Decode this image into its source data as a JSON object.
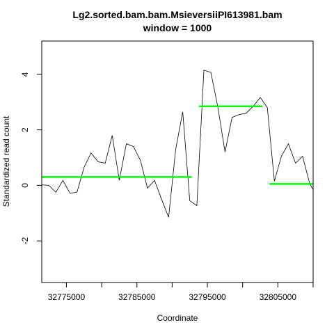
{
  "chart_data": {
    "type": "line",
    "title": "Lg2.sorted.bam.bam.MsieversiiPI613981.bam",
    "subtitle": "window = 1000",
    "xlabel": "Coordinate",
    "ylabel": "Standardized read count",
    "xlim": [
      32771500,
      32810000
    ],
    "ylim": [
      -3.5,
      5.2
    ],
    "x_ticks": [
      32775000,
      32785000,
      32795000,
      32805000
    ],
    "x_minor_ticks": [
      32775000,
      32780000,
      32785000,
      32790000,
      32795000,
      32800000,
      32805000,
      32810000
    ],
    "y_ticks": [
      -2,
      0,
      2,
      4
    ],
    "grid": false,
    "series": [
      {
        "color": "#000000",
        "points": [
          [
            32771500,
            0.02
          ],
          [
            32772500,
            0.0
          ],
          [
            32773500,
            -0.25
          ],
          [
            32774500,
            0.18
          ],
          [
            32775500,
            -0.28
          ],
          [
            32776500,
            -0.25
          ],
          [
            32777500,
            0.65
          ],
          [
            32778500,
            1.17
          ],
          [
            32779500,
            0.85
          ],
          [
            32780500,
            0.8
          ],
          [
            32781500,
            1.8
          ],
          [
            32782500,
            0.18
          ],
          [
            32783500,
            1.5
          ],
          [
            32784500,
            1.4
          ],
          [
            32785500,
            0.9
          ],
          [
            32786500,
            -0.1
          ],
          [
            32787500,
            0.18
          ],
          [
            32788500,
            -0.5
          ],
          [
            32789500,
            -1.15
          ],
          [
            32790500,
            1.3
          ],
          [
            32791500,
            2.65
          ],
          [
            32792500,
            -0.55
          ],
          [
            32793500,
            -0.73
          ],
          [
            32794500,
            4.15
          ],
          [
            32795500,
            4.07
          ],
          [
            32796500,
            2.8
          ],
          [
            32797500,
            1.2
          ],
          [
            32798500,
            2.45
          ],
          [
            32799500,
            2.55
          ],
          [
            32800500,
            2.6
          ],
          [
            32801500,
            2.85
          ],
          [
            32802500,
            3.17
          ],
          [
            32803500,
            2.8
          ],
          [
            32804500,
            0.15
          ],
          [
            32805500,
            1.05
          ],
          [
            32806500,
            1.5
          ],
          [
            32807500,
            0.8
          ],
          [
            32808500,
            1.05
          ],
          [
            32809500,
            0.08
          ],
          [
            32810500,
            -0.4
          ],
          [
            32811500,
            0.12
          ]
        ]
      }
    ],
    "segments": [
      {
        "color": "#00ff00",
        "x0": 32771500,
        "x1": 32792800,
        "y": 0.3
      },
      {
        "color": "#00ff00",
        "x0": 32793800,
        "x1": 32802800,
        "y": 2.85
      },
      {
        "color": "#00ff00",
        "x0": 32803800,
        "x1": 32810000,
        "y": 0.05
      }
    ]
  }
}
